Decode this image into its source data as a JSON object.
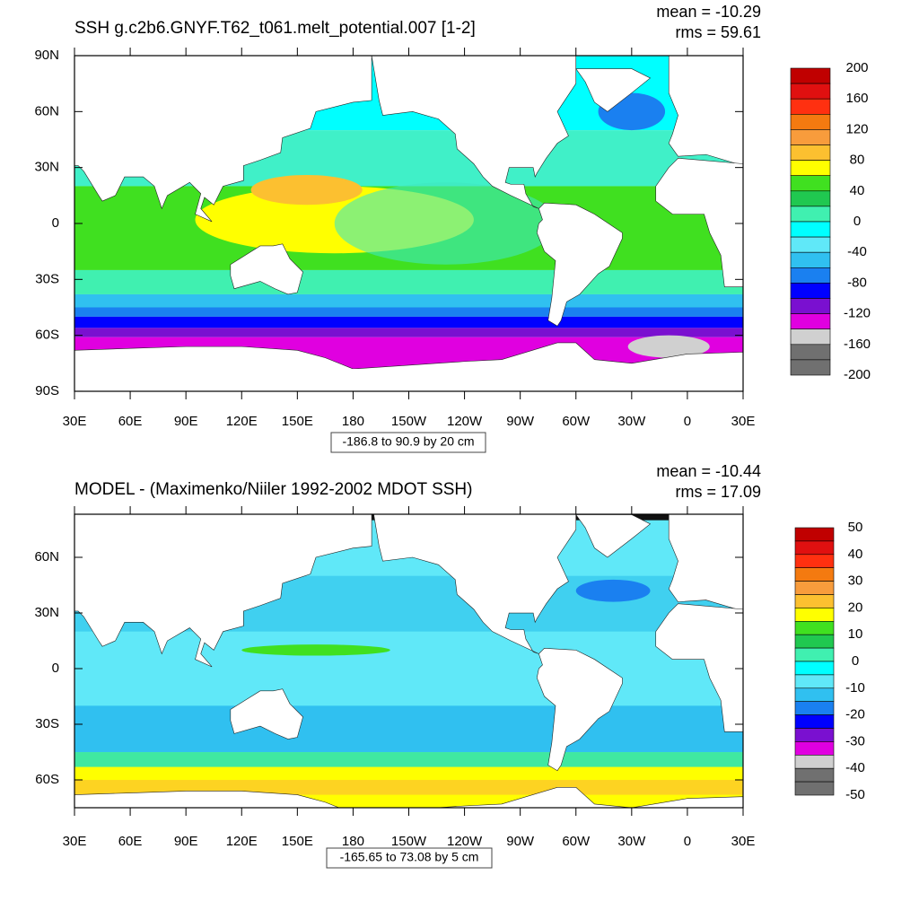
{
  "panels": [
    {
      "title": "SSH g.c2b6.GNYF.T62_t061.melt_potential.007 [1-2]",
      "stats": [
        "mean = -10.29",
        "rms = 59.61"
      ],
      "yticks": [
        "90N",
        "60N",
        "30N",
        "0",
        "30S",
        "60S",
        "90S"
      ],
      "xticks": [
        "30E",
        "60E",
        "90E",
        "120E",
        "150E",
        "180",
        "150W",
        "120W",
        "90W",
        "60W",
        "30W",
        "0",
        "30E"
      ],
      "range_label": "-186.8 to 90.9 by 20 cm",
      "colorbar": {
        "labels": [
          200,
          160,
          120,
          80,
          40,
          0,
          -40,
          -80,
          -120,
          -160,
          -200
        ]
      }
    },
    {
      "title": "MODEL - (Maximenko/Niiler 1992-2002 MDOT SSH)",
      "stats": [
        "mean = -10.44",
        "rms = 17.09"
      ],
      "yticks": [
        "60N",
        "30N",
        "0",
        "30S",
        "60S"
      ],
      "xticks": [
        "30E",
        "60E",
        "90E",
        "120E",
        "150E",
        "180",
        "150W",
        "120W",
        "90W",
        "60W",
        "30W",
        "0",
        "30E"
      ],
      "range_label": "-165.65 to 73.08 by 5 cm",
      "colorbar": {
        "labels": [
          50,
          40,
          30,
          20,
          10,
          0,
          -10,
          -20,
          -30,
          -40,
          -50
        ]
      }
    }
  ],
  "colorbar_colors": [
    "#c00000",
    "#e01010",
    "#ff3010",
    "#f47a10",
    "#f89c3c",
    "#fcc030",
    "#ffff00",
    "#40e020",
    "#20c850",
    "#40f0b0",
    "#00ffff",
    "#60e8f8",
    "#30c0f0",
    "#1a80f0",
    "#0000ff",
    "#7a10d0",
    "#e000e0",
    "#d0d0d0",
    "#707070",
    "#707070"
  ]
}
